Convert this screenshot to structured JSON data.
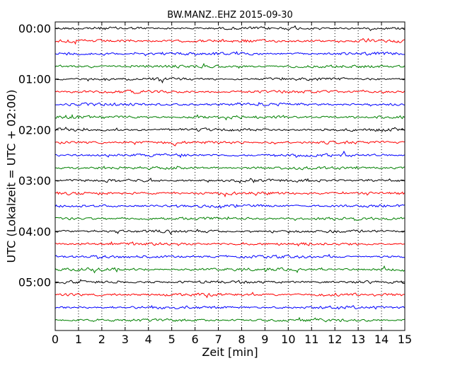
{
  "chart_data": {
    "type": "line",
    "title": "BW.MANZ..EHZ 2015-09-30",
    "xlabel": "Zeit  [min]",
    "ylabel": "UTC (Lokalzeit = UTC + 02:00)",
    "xlim": [
      0,
      15
    ],
    "xticks": [
      "0",
      "1",
      "2",
      "3",
      "4",
      "5",
      "6",
      "7",
      "8",
      "9",
      "10",
      "11",
      "12",
      "13",
      "14",
      "15"
    ],
    "y_tick_labels": [
      "00:00",
      "01:00",
      "02:00",
      "03:00",
      "04:00",
      "05:00"
    ],
    "trace_interval_min": 15,
    "trace_count": 24,
    "trace_colors": [
      "#000000",
      "#ff0000",
      "#0000ff",
      "#008000"
    ],
    "vertical_grid": true,
    "grid_style": "dotted"
  }
}
